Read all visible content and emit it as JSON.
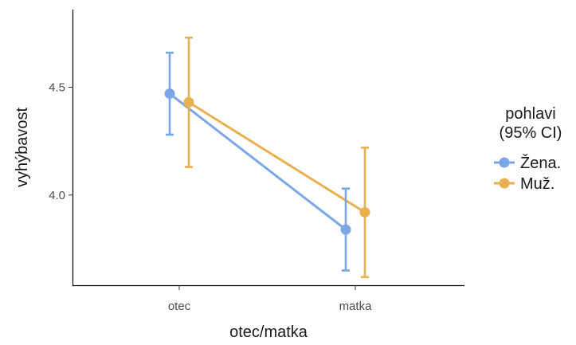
{
  "chart_data": {
    "type": "line",
    "title": "",
    "xlabel": "otec/matka",
    "ylabel": "vyhýbavost",
    "categories": [
      "otec",
      "matka"
    ],
    "ylim": [
      3.58,
      4.86
    ],
    "yticks": [
      4.0,
      4.5
    ],
    "yticklabels": [
      "4.0",
      "4.5"
    ],
    "grid": false,
    "legend": {
      "title_line1": "pohlavi",
      "title_line2": "(95% CI)",
      "placement": "right"
    },
    "series": [
      {
        "name": "Žena.",
        "color": "#7BA6E8",
        "values": [
          4.47,
          3.84
        ],
        "ci_low": [
          4.28,
          3.65
        ],
        "ci_high": [
          4.66,
          4.03
        ]
      },
      {
        "name": "Muž.",
        "color": "#E9B04F",
        "values": [
          4.43,
          3.92
        ],
        "ci_low": [
          4.13,
          3.62
        ],
        "ci_high": [
          4.73,
          4.22
        ]
      }
    ]
  }
}
